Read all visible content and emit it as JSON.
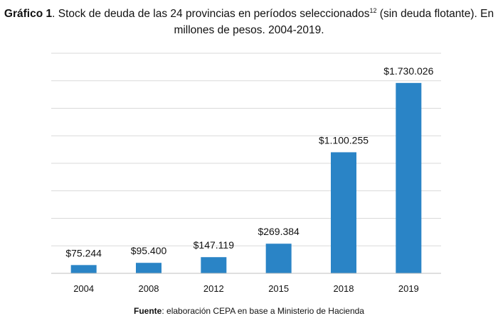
{
  "chart_data": {
    "type": "bar",
    "title_bold": "Gráfico 1",
    "title_text": ". Stock de deuda de las 24 provincias en períodos seleccionados",
    "title_footnote": "12",
    "title_tail": " (sin deuda flotante). En",
    "title_line2": "millones de pesos. 2004-2019.",
    "categories": [
      "2004",
      "2008",
      "2012",
      "2015",
      "2018",
      "2019"
    ],
    "values": [
      75244,
      95400,
      147119,
      269384,
      1100255,
      1730026
    ],
    "data_labels": [
      "$75.244",
      "$95.400",
      "$147.119",
      "$269.384",
      "$1.100.255",
      "$1.730.026"
    ],
    "ylim": [
      0,
      2000000
    ],
    "grid": true,
    "legend": "none",
    "bar_color": "#2a84c6",
    "grid_color": "#d9d9d9",
    "axis_color": "#bfbfbf"
  },
  "source": {
    "label": "Fuente",
    "text": ": elaboración CEPA en base a Ministerio de Hacienda"
  }
}
